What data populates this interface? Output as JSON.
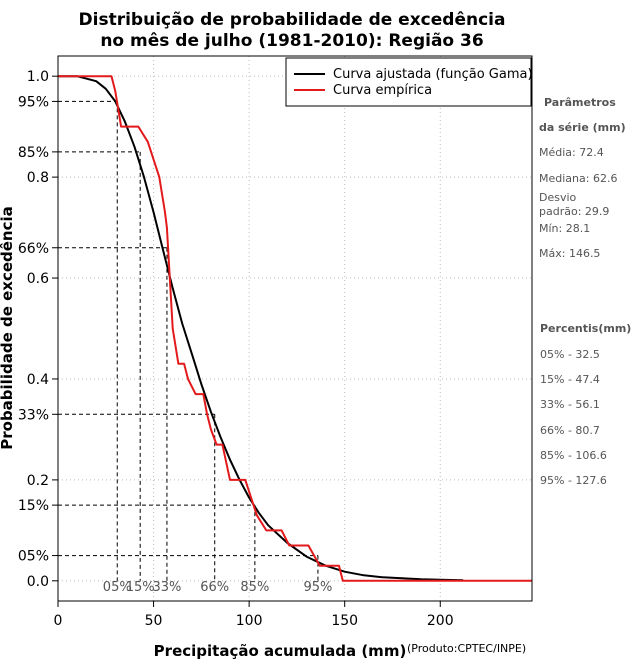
{
  "chart_data": {
    "type": "line",
    "title_line1": "Distribuição de probabilidade de excedência",
    "title_line2": "no mês de julho (1981-2010): Região 36",
    "xlabel": "Precipitação acumulada (mm)",
    "ylabel": "Probabilidade de excedência",
    "credit": "(Produto:CPTEC/INPE)",
    "xlim": [
      0,
      248
    ],
    "ylim": [
      -0.04,
      1.04
    ],
    "x_ticks": [
      0,
      50,
      100,
      150,
      200
    ],
    "y_ticks": [
      {
        "value": 1.0,
        "label": "1.0"
      },
      {
        "value": 0.8,
        "label": "0.8"
      },
      {
        "value": 0.6,
        "label": "0.6"
      },
      {
        "value": 0.4,
        "label": "0.4"
      },
      {
        "value": 0.2,
        "label": "0.2"
      },
      {
        "value": 0.0,
        "label": "0.0"
      }
    ],
    "y_percent_ticks": [
      {
        "value": 0.95,
        "label": "95%"
      },
      {
        "value": 0.85,
        "label": "85%"
      },
      {
        "value": 0.66,
        "label": "66%"
      },
      {
        "value": 0.33,
        "label": "33%"
      },
      {
        "value": 0.15,
        "label": "15%"
      },
      {
        "value": 0.05,
        "label": "05%"
      }
    ],
    "percentile_markers": [
      {
        "label": "05%",
        "x": 31,
        "y": 0.95
      },
      {
        "label": "15%",
        "x": 43,
        "y": 0.85
      },
      {
        "label": "33%",
        "x": 57,
        "y": 0.66
      },
      {
        "label": "66%",
        "x": 82,
        "y": 0.33
      },
      {
        "label": "85%",
        "x": 103,
        "y": 0.15
      },
      {
        "label": "95%",
        "x": 136,
        "y": 0.05
      }
    ],
    "legend": [
      {
        "label": "Curva ajustada (função Gama)",
        "color": "#000000"
      },
      {
        "label": "Curva empírica",
        "color": "#e31a1c"
      }
    ],
    "series": [
      {
        "name": "Curva ajustada (função Gama)",
        "color": "#000000",
        "x": [
          0,
          10,
          20,
          25,
          30,
          35,
          40,
          45,
          50,
          55,
          60,
          65,
          70,
          75,
          80,
          85,
          90,
          95,
          100,
          105,
          110,
          120,
          130,
          140,
          150,
          160,
          170,
          180,
          190,
          200,
          212
        ],
        "y": [
          1.0,
          1.0,
          0.99,
          0.975,
          0.95,
          0.91,
          0.86,
          0.8,
          0.73,
          0.655,
          0.58,
          0.51,
          0.45,
          0.39,
          0.335,
          0.285,
          0.24,
          0.2,
          0.165,
          0.135,
          0.11,
          0.075,
          0.048,
          0.03,
          0.018,
          0.011,
          0.007,
          0.005,
          0.003,
          0.002,
          0.001
        ]
      },
      {
        "name": "Curva empírica",
        "color": "#e31a1c",
        "x": [
          0,
          28,
          30,
          33,
          42,
          47,
          53,
          56,
          57,
          60,
          63,
          66,
          68,
          72,
          76,
          78,
          80,
          83,
          86,
          90,
          98,
          104,
          109,
          117,
          121,
          131,
          137,
          143,
          147,
          149,
          248
        ],
        "y": [
          1.0,
          1.0,
          0.97,
          0.9,
          0.9,
          0.87,
          0.8,
          0.73,
          0.7,
          0.5,
          0.43,
          0.43,
          0.4,
          0.37,
          0.37,
          0.33,
          0.3,
          0.27,
          0.27,
          0.2,
          0.2,
          0.13,
          0.1,
          0.1,
          0.07,
          0.07,
          0.03,
          0.03,
          0.03,
          0.0,
          0.0
        ]
      }
    ]
  },
  "sidebar": {
    "params_title_1": "Parâmetros",
    "params_title_2": "da série (mm)",
    "media": "Média: 72.4",
    "mediana": "Mediana: 62.6",
    "desvio_1": "Desvio",
    "desvio_2": "padrão: 29.9",
    "min": "Mín: 28.1",
    "max": "Máx: 146.5",
    "percentis_title": "Percentis(mm)",
    "p05": "05% - 32.5",
    "p15": "15% - 47.4",
    "p33": "33% - 56.1",
    "p66": "66% - 80.7",
    "p85": "85% - 106.6",
    "p95": "95% - 127.6"
  }
}
